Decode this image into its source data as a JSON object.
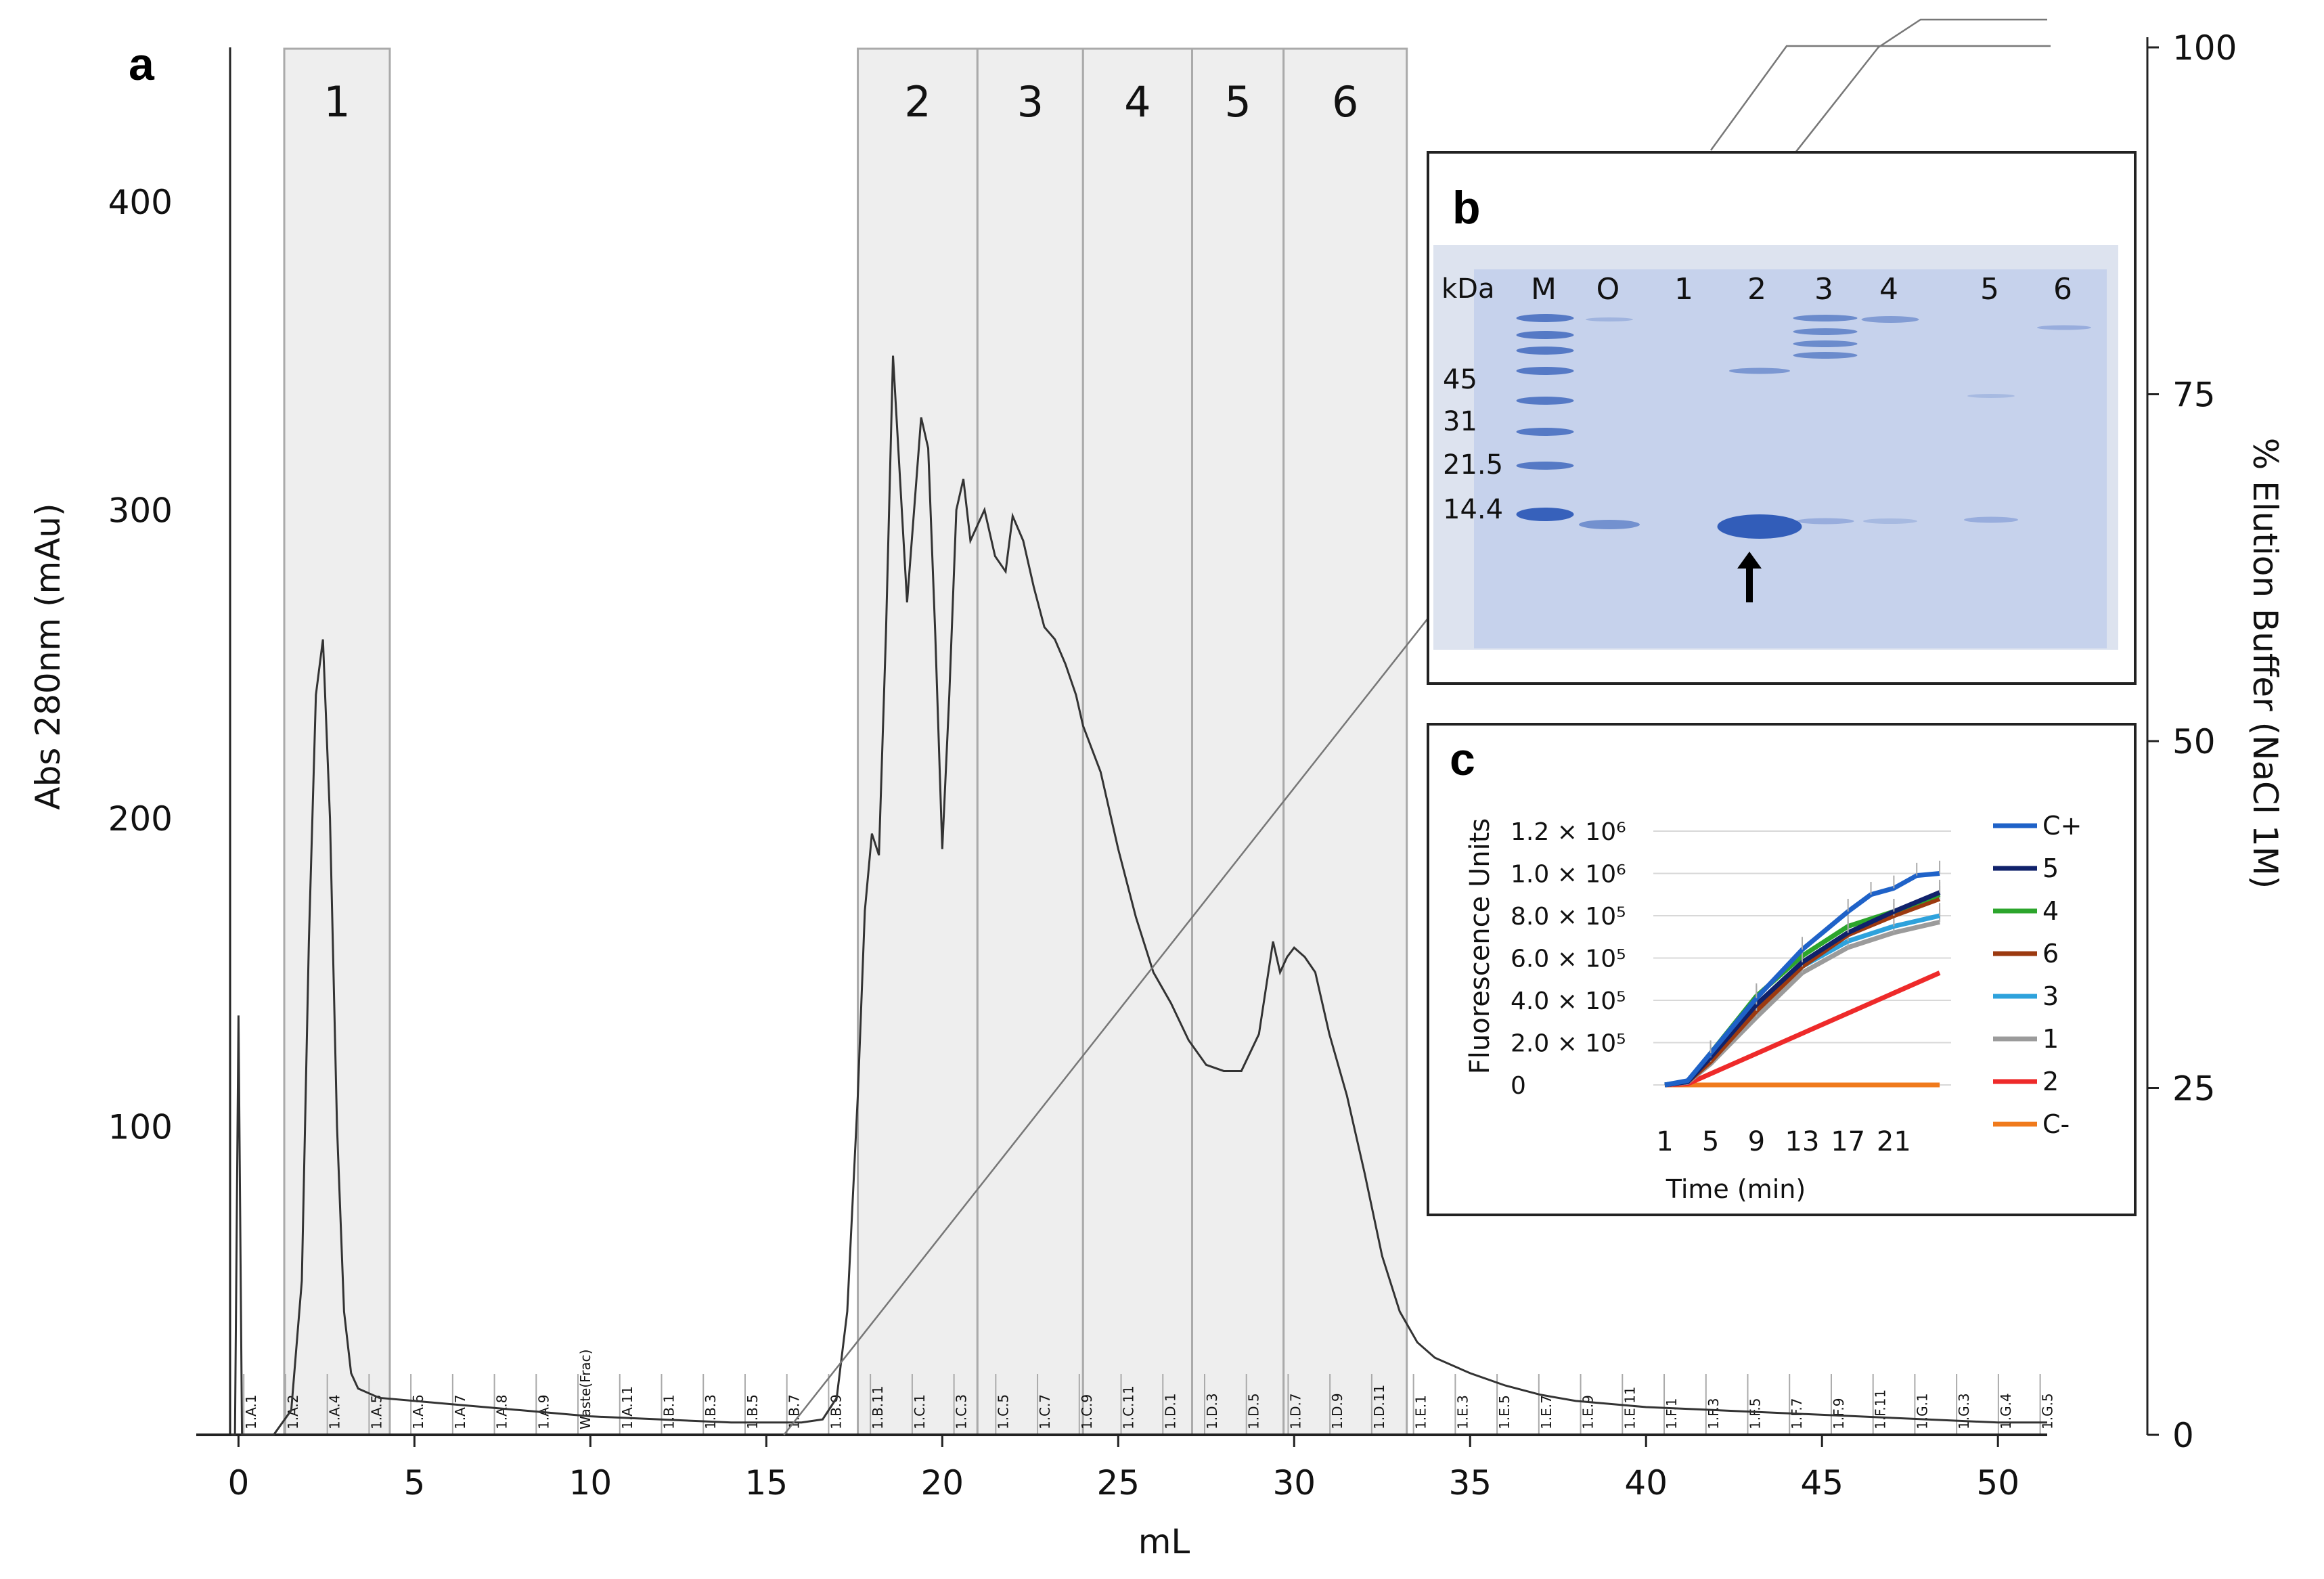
{
  "panel_a": {
    "letter": "a",
    "fraction_labels": [
      "1",
      "2",
      "3",
      "4",
      "5",
      "6"
    ],
    "fraction_ranges_ml": [
      [
        1.3,
        4.3
      ],
      [
        17.6,
        21.0
      ],
      [
        21.0,
        24.0
      ],
      [
        24.0,
        27.1
      ],
      [
        27.1,
        29.7
      ],
      [
        29.7,
        33.2
      ]
    ],
    "tube_labels": [
      "1.A.1",
      "1.A.2",
      "1.A.4",
      "1.A.5",
      "1.A.6",
      "1.A.7",
      "1.A.8",
      "1.A.9",
      "Waste(Frac)",
      "1.A.11",
      "1.B.1",
      "1.B.3",
      "1.B.5",
      "1.B.7",
      "1.B.9",
      "1.B.11",
      "1.C.1",
      "1.C.3",
      "1.C.5",
      "1.C.7",
      "1.C.9",
      "1.C.11",
      "1.D.1",
      "1.D.3",
      "1.D.5",
      "1.D.7",
      "1.D.9",
      "1.D.11",
      "1.E.1",
      "1.E.3",
      "1.E.5",
      "1.E.7",
      "1.E.9",
      "1.E.11",
      "1.F.1",
      "1.F.3",
      "1.F.5",
      "1.F.7",
      "1.F.9",
      "1.F.11",
      "1.G.1",
      "1.G.3",
      "1.G.4",
      "1.G.5"
    ]
  },
  "panel_b": {
    "letter": "b",
    "kda_label": "kDa",
    "lane_labels": [
      "M",
      "O",
      "1",
      "2",
      "3",
      "4",
      "5",
      "6"
    ],
    "mw_labels": [
      "45",
      "31",
      "21.5",
      "14.4"
    ]
  },
  "panel_c": {
    "letter": "c"
  },
  "colors": {
    "C+": "#1f62c8",
    "5": "#10226b",
    "4": "#2ca52c",
    "6": "#9c3a10",
    "3": "#2ea2dc",
    "1": "#9b9b9b",
    "2": "#ee2a2a",
    "C-": "#f07a1c",
    "fraction_shade": "#eeeeee",
    "gel_bg": "#c9d4ec",
    "gel_band": "#2f5bb8"
  },
  "chart_data": [
    {
      "type": "line",
      "title": "",
      "xlabel": "mL",
      "ylabel": "Abs 280nm (mAu)",
      "y2label": "% Elution Buffer (NaCl 1M)",
      "xlim": [
        -1.2,
        51.4
      ],
      "ylim": [
        0,
        450
      ],
      "y2lim": [
        0,
        100
      ],
      "xticks": [
        0,
        5,
        10,
        15,
        20,
        25,
        30,
        35,
        40,
        45,
        50
      ],
      "yticks": [
        100,
        200,
        300,
        400
      ],
      "y2ticks": [
        0,
        25,
        50,
        75,
        100
      ],
      "series": [
        {
          "x": [
            -0.2,
            -0.1,
            0,
            0.1,
            0.2,
            1.0,
            1.5,
            1.8,
            2.0,
            2.2,
            2.4,
            2.6,
            2.8,
            3.0,
            3.2,
            3.4,
            4.0,
            5.0,
            6.0,
            7.0,
            8.0,
            10.0,
            12.0,
            14.0,
            16.0,
            16.6,
            17.0,
            17.3,
            17.6,
            17.8,
            18.0,
            18.2,
            18.4,
            18.6,
            18.8,
            19.0,
            19.2,
            19.4,
            19.6,
            19.8,
            20.0,
            20.2,
            20.4,
            20.6,
            20.8,
            21.0,
            21.2,
            21.5,
            21.8,
            22.0,
            22.3,
            22.6,
            22.9,
            23.2,
            23.5,
            23.8,
            24.0,
            24.5,
            25.0,
            25.5,
            26.0,
            26.5,
            27.0,
            27.5,
            28.0,
            28.5,
            29.0,
            29.4,
            29.6,
            29.8,
            30.0,
            30.3,
            30.6,
            31.0,
            31.5,
            32.0,
            32.5,
            33.0,
            33.5,
            34.0,
            35.0,
            36.0,
            37.0,
            38.0,
            40.0,
            42.0,
            44.0,
            46.0,
            48.0,
            50.0,
            51.4
          ],
          "y": [
            0,
            0,
            136,
            0,
            0,
            0,
            8,
            50,
            160,
            240,
            258,
            200,
            100,
            40,
            20,
            15,
            12,
            11,
            10,
            9,
            8,
            6,
            5,
            4,
            4,
            5,
            12,
            40,
            110,
            170,
            195,
            188,
            260,
            350,
            310,
            270,
            300,
            330,
            320,
            260,
            190,
            240,
            300,
            310,
            290,
            295,
            300,
            285,
            280,
            298,
            290,
            275,
            262,
            258,
            250,
            240,
            230,
            215,
            190,
            168,
            150,
            140,
            128,
            120,
            118,
            118,
            130,
            160,
            150,
            155,
            158,
            155,
            150,
            130,
            110,
            85,
            58,
            40,
            30,
            25,
            20,
            16,
            13,
            11,
            9,
            8,
            7,
            6,
            5,
            4,
            4
          ]
        }
      ],
      "elution_gradient": {
        "x": [
          15.5,
          46.6,
          47.8,
          51.4
        ],
        "y": [
          0,
          100,
          102,
          102
        ]
      }
    },
    {
      "type": "line",
      "title": "",
      "xlabel": "Time (min)",
      "ylabel": "Fluorescence Units",
      "xticks": [
        1,
        5,
        9,
        13,
        17,
        21
      ],
      "xlim": [
        1,
        25
      ],
      "ylim": [
        0,
        1200000
      ],
      "ytick_labels": [
        "1.2 × 10⁶",
        "1.0 × 10⁶",
        "8.0 × 10⁵",
        "6.0 × 10⁵",
        "4.0 × 10⁵",
        "2.0 × 10⁵",
        "0"
      ],
      "yticks": [
        1200000,
        1000000,
        800000,
        600000,
        400000,
        200000,
        0
      ],
      "legend": "right",
      "series": [
        {
          "name": "C+",
          "x": [
            1,
            3,
            5,
            9,
            13,
            17,
            19,
            21,
            23,
            25
          ],
          "y": [
            0,
            20000,
            150000,
            410000,
            640000,
            820000,
            900000,
            930000,
            990000,
            1000000
          ]
        },
        {
          "name": "5",
          "x": [
            1,
            3,
            5,
            9,
            13,
            17,
            21,
            25
          ],
          "y": [
            0,
            15000,
            130000,
            380000,
            580000,
            720000,
            820000,
            910000
          ]
        },
        {
          "name": "4",
          "x": [
            1,
            3,
            5,
            9,
            13,
            17,
            21,
            25
          ],
          "y": [
            0,
            18000,
            150000,
            420000,
            610000,
            750000,
            820000,
            900000
          ]
        },
        {
          "name": "6",
          "x": [
            1,
            3,
            5,
            9,
            13,
            17,
            21,
            25
          ],
          "y": [
            0,
            15000,
            110000,
            350000,
            560000,
            710000,
            800000,
            880000
          ]
        },
        {
          "name": "3",
          "x": [
            1,
            3,
            5,
            9,
            13,
            17,
            21,
            25
          ],
          "y": [
            0,
            15000,
            120000,
            360000,
            560000,
            680000,
            750000,
            800000
          ]
        },
        {
          "name": "1",
          "x": [
            1,
            3,
            5,
            9,
            13,
            17,
            21,
            25
          ],
          "y": [
            0,
            12000,
            100000,
            320000,
            530000,
            650000,
            720000,
            770000
          ]
        },
        {
          "name": "2",
          "x": [
            1,
            3,
            25
          ],
          "y": [
            0,
            5000,
            530000
          ]
        },
        {
          "name": "C-",
          "x": [
            1,
            25
          ],
          "y": [
            0,
            0
          ]
        }
      ]
    }
  ]
}
